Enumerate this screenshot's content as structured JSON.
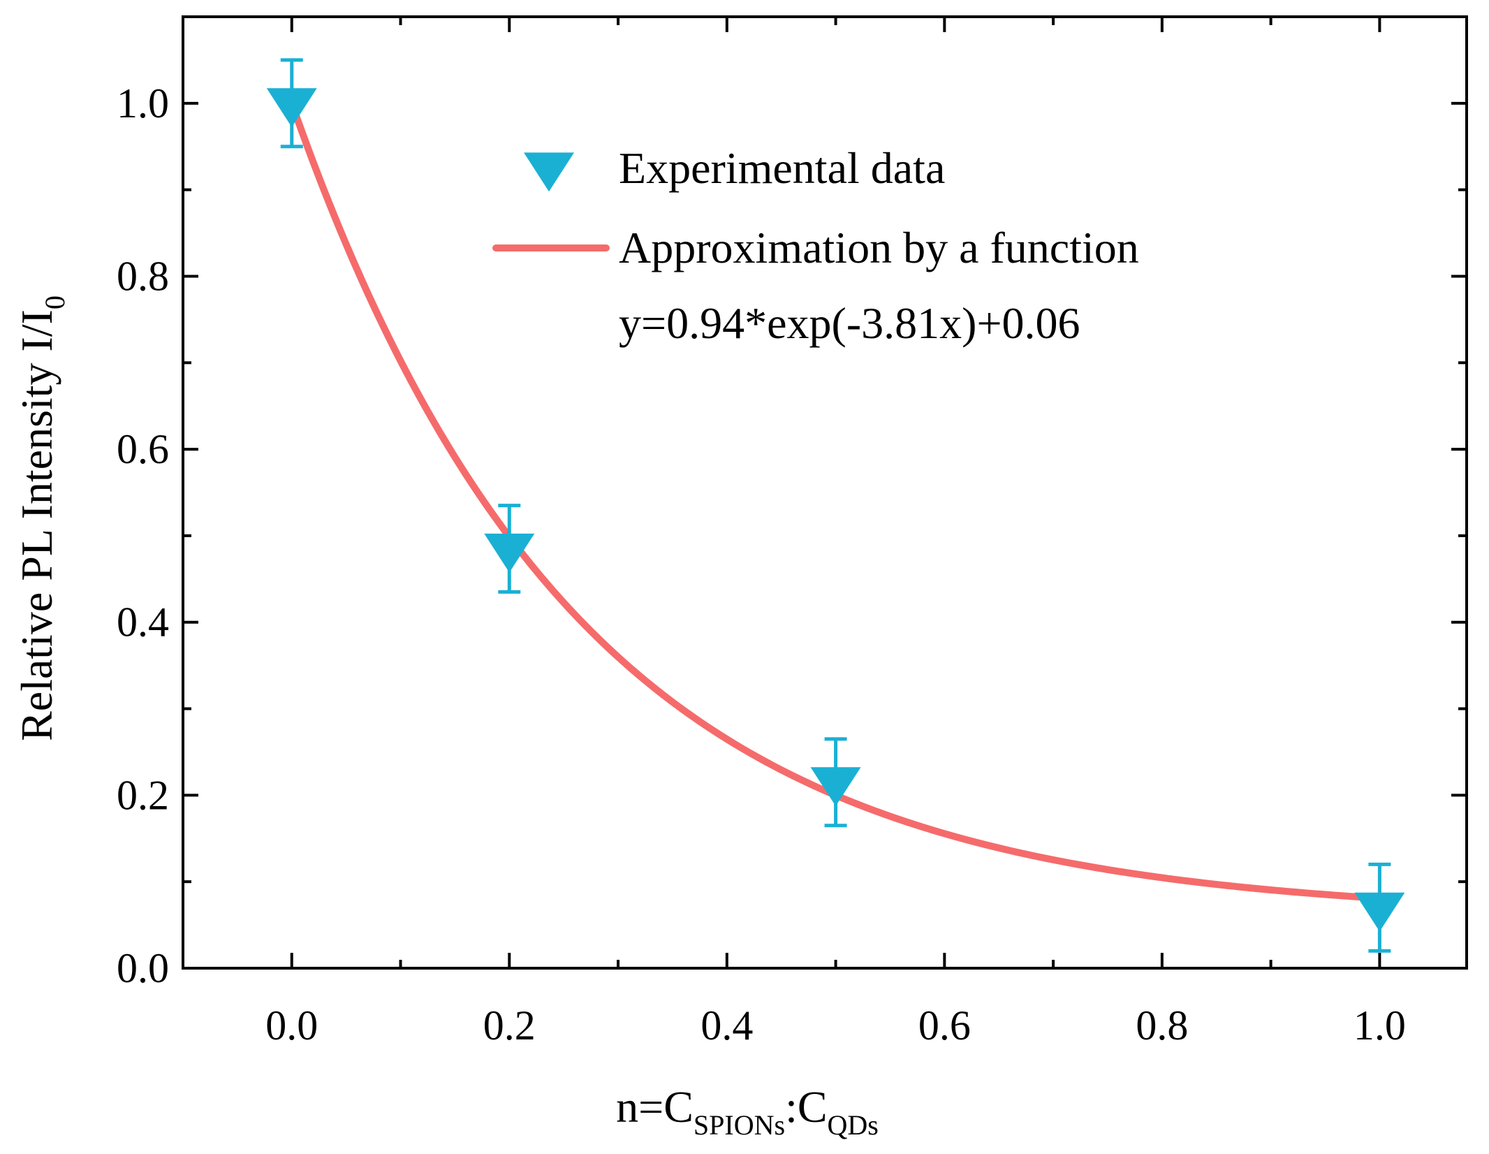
{
  "chart_data": {
    "type": "scatter",
    "xlabel": {
      "main": "n=C",
      "sub1": "SPIONs",
      "sep": ":C",
      "base2": "",
      "sub2": "QDs"
    },
    "ylabel": {
      "main": "Relative PL Intensity I/I",
      "sub": "0"
    },
    "xlim": [
      -0.1,
      1.08
    ],
    "ylim": [
      0.0,
      1.1
    ],
    "x_ticks": [
      "0.0",
      "0.2",
      "0.4",
      "0.6",
      "0.8",
      "1.0"
    ],
    "x_tick_values": [
      0.0,
      0.2,
      0.4,
      0.6,
      0.8,
      1.0
    ],
    "y_ticks": [
      "0.0",
      "0.2",
      "0.4",
      "0.6",
      "0.8",
      "1.0"
    ],
    "y_tick_values": [
      0.0,
      0.2,
      0.4,
      0.6,
      0.8,
      1.0
    ],
    "series": [
      {
        "name": "Experimental data",
        "kind": "scatter",
        "marker": "triangle-down",
        "color": "#1ab0d4",
        "points": [
          {
            "x": 0.0,
            "y": 1.0,
            "err_low": 0.05,
            "err_high": 0.05
          },
          {
            "x": 0.2,
            "y": 0.485,
            "err_low": 0.05,
            "err_high": 0.05
          },
          {
            "x": 0.5,
            "y": 0.215,
            "err_low": 0.05,
            "err_high": 0.05
          },
          {
            "x": 1.0,
            "y": 0.07,
            "err_low": 0.05,
            "err_high": 0.05
          }
        ]
      },
      {
        "name": "Approximation by a function",
        "kind": "line",
        "color": "#f56b6b",
        "function": {
          "a": 0.94,
          "b": -3.81,
          "c": 0.06
        },
        "x_range": [
          0.0,
          1.0
        ]
      }
    ],
    "legend": {
      "position": "top-right",
      "entries": [
        "Experimental data",
        "Approximation by a function"
      ],
      "equation": "y=0.94*exp(-3.81x)+0.06"
    }
  }
}
